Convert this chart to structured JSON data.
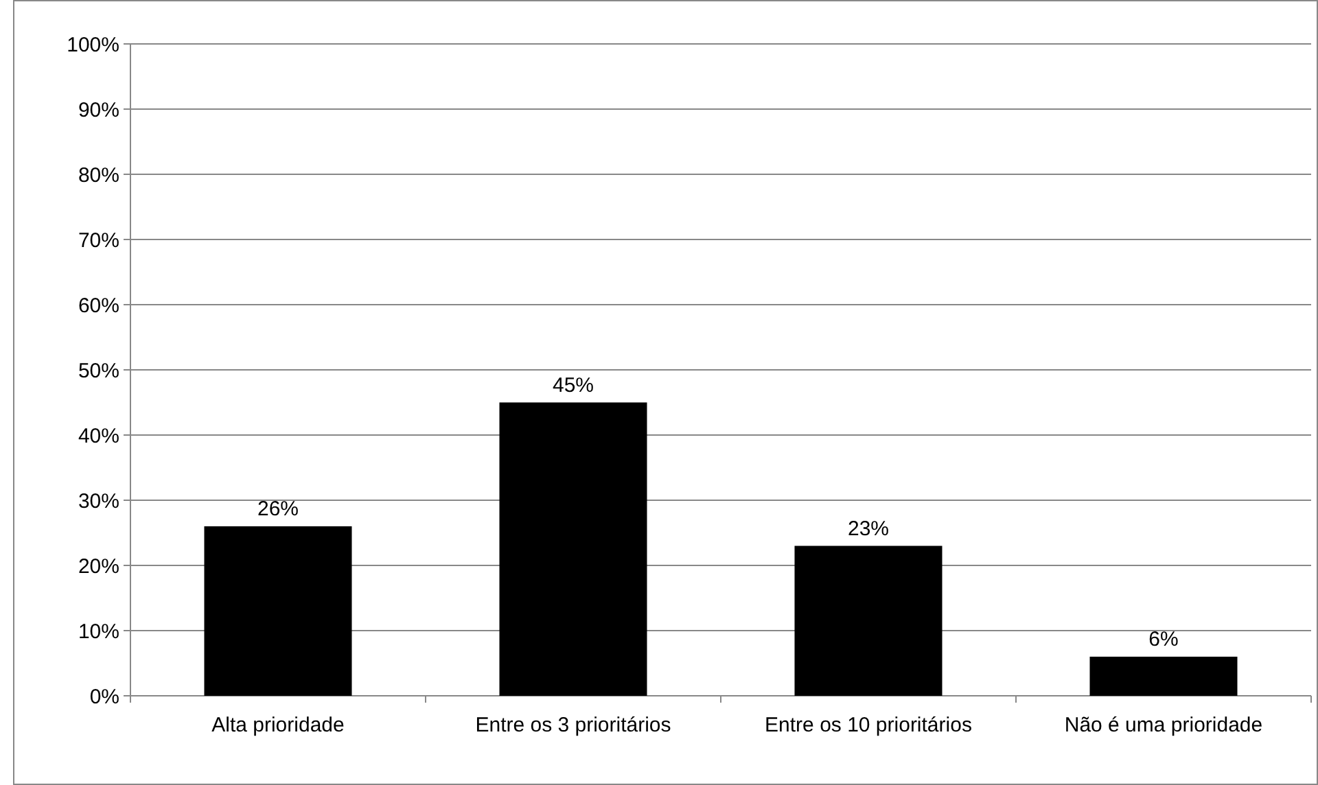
{
  "chart_data": {
    "type": "bar",
    "categories": [
      "Alta prioridade",
      "Entre os 3 prioritários",
      "Entre os 10 prioritários",
      "Não é uma prioridade"
    ],
    "values": [
      26,
      45,
      23,
      6
    ],
    "color": "#000000",
    "value_labels": [
      "26%",
      "45%",
      "23%",
      "6%"
    ],
    "ylim": [
      0,
      100
    ],
    "yticks": [
      {
        "value": 0,
        "label": "0%"
      },
      {
        "value": 10,
        "label": "10%"
      },
      {
        "value": 20,
        "label": "20%"
      },
      {
        "value": 30,
        "label": "30%"
      },
      {
        "value": 40,
        "label": "40%"
      },
      {
        "value": 50,
        "label": "50%"
      },
      {
        "value": 60,
        "label": "60%"
      },
      {
        "value": 70,
        "label": "70%"
      },
      {
        "value": 80,
        "label": "80%"
      },
      {
        "value": 90,
        "label": "90%"
      },
      {
        "value": 100,
        "label": "100%"
      }
    ],
    "grid": "y"
  }
}
